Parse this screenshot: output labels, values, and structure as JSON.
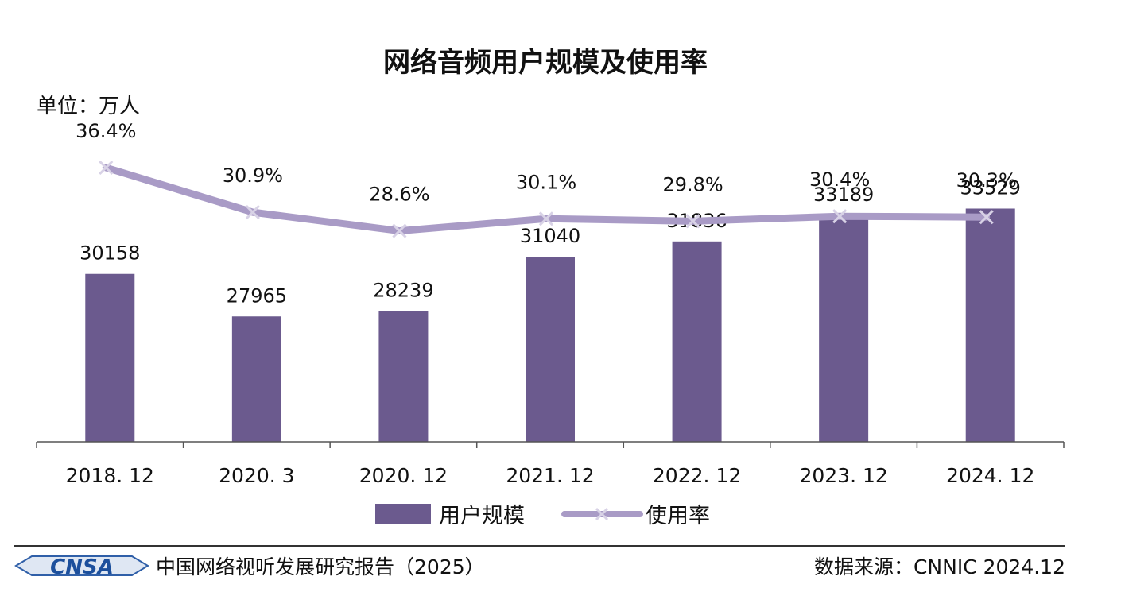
{
  "chart_data": {
    "type": "bar",
    "title": "网络音频用户规模及使用率",
    "unit_label": "单位：万人",
    "categories": [
      "2018. 12",
      "2020. 3",
      "2020. 12",
      "2021. 12",
      "2022. 12",
      "2023. 12",
      "2024. 12"
    ],
    "series": [
      {
        "name": "用户规模",
        "type": "bar",
        "values": [
          30158,
          27965,
          28239,
          31040,
          31836,
          33189,
          33529
        ],
        "labels": [
          "30158",
          "27965",
          "28239",
          "31040",
          "31836",
          "33189",
          "33529"
        ],
        "color": "#6b5a8e"
      },
      {
        "name": "使用率",
        "type": "line",
        "values": [
          36.4,
          30.9,
          28.6,
          30.1,
          29.8,
          30.4,
          30.3
        ],
        "labels": [
          "36.4%",
          "30.9%",
          "28.6%",
          "30.1%",
          "29.8%",
          "30.4%",
          "30.3%"
        ],
        "color": "#a99bc6"
      }
    ],
    "legend_position": "bottom",
    "grid": false
  },
  "footer": {
    "logo_text": "CNSA",
    "report_title": "中国网络视听发展研究报告（2025）",
    "source": "数据来源：CNNIC  2024.12"
  }
}
